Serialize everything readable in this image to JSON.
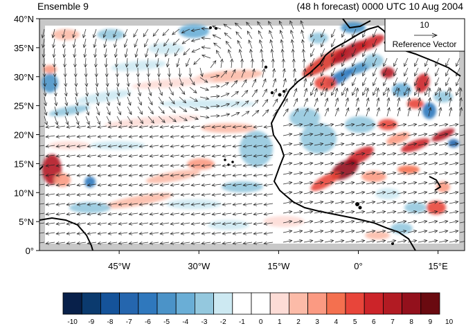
{
  "header": {
    "left_title": "Ensemble 9",
    "right_title": "(48 h forecast) 0000 UTC 10 Aug 2004"
  },
  "map": {
    "lon_range": [
      -60,
      20
    ],
    "lat_range": [
      0,
      40
    ],
    "y_ticks": [
      "0°",
      "5°N",
      "10°N",
      "15°N",
      "20°N",
      "25°N",
      "30°N",
      "35°N",
      "40°N"
    ],
    "x_ticks": [
      "45°W",
      "30°W",
      "15°W",
      "0°",
      "15°E"
    ],
    "x_tick_values": [
      -45,
      -30,
      -15,
      0,
      15
    ],
    "y_tick_values": [
      0,
      5,
      10,
      15,
      20,
      25,
      30,
      35,
      40
    ],
    "land_color": "#c8c8c8",
    "coast_color": "#000000"
  },
  "reference_vector": {
    "magnitude": "10",
    "label": "Reference Vector"
  },
  "colorbar": {
    "labels": [
      "-10",
      "-9",
      "-8",
      "-7",
      "-6",
      "-5",
      "-4",
      "-3",
      "-2",
      "-1",
      "0",
      "1",
      "2",
      "3",
      "4",
      "5",
      "6",
      "7",
      "8",
      "9",
      "10"
    ],
    "colors": [
      "#08204a",
      "#0b3a6e",
      "#15539a",
      "#2566ae",
      "#2f78bd",
      "#4b93c8",
      "#6aaed6",
      "#94c8de",
      "#cde9f2",
      "#ffffff",
      "#ffffff",
      "#fddcd6",
      "#fcbba8",
      "#fb9a82",
      "#f4704f",
      "#e8453a",
      "#cc2429",
      "#b21b23",
      "#93101c",
      "#6a0a10"
    ]
  }
}
